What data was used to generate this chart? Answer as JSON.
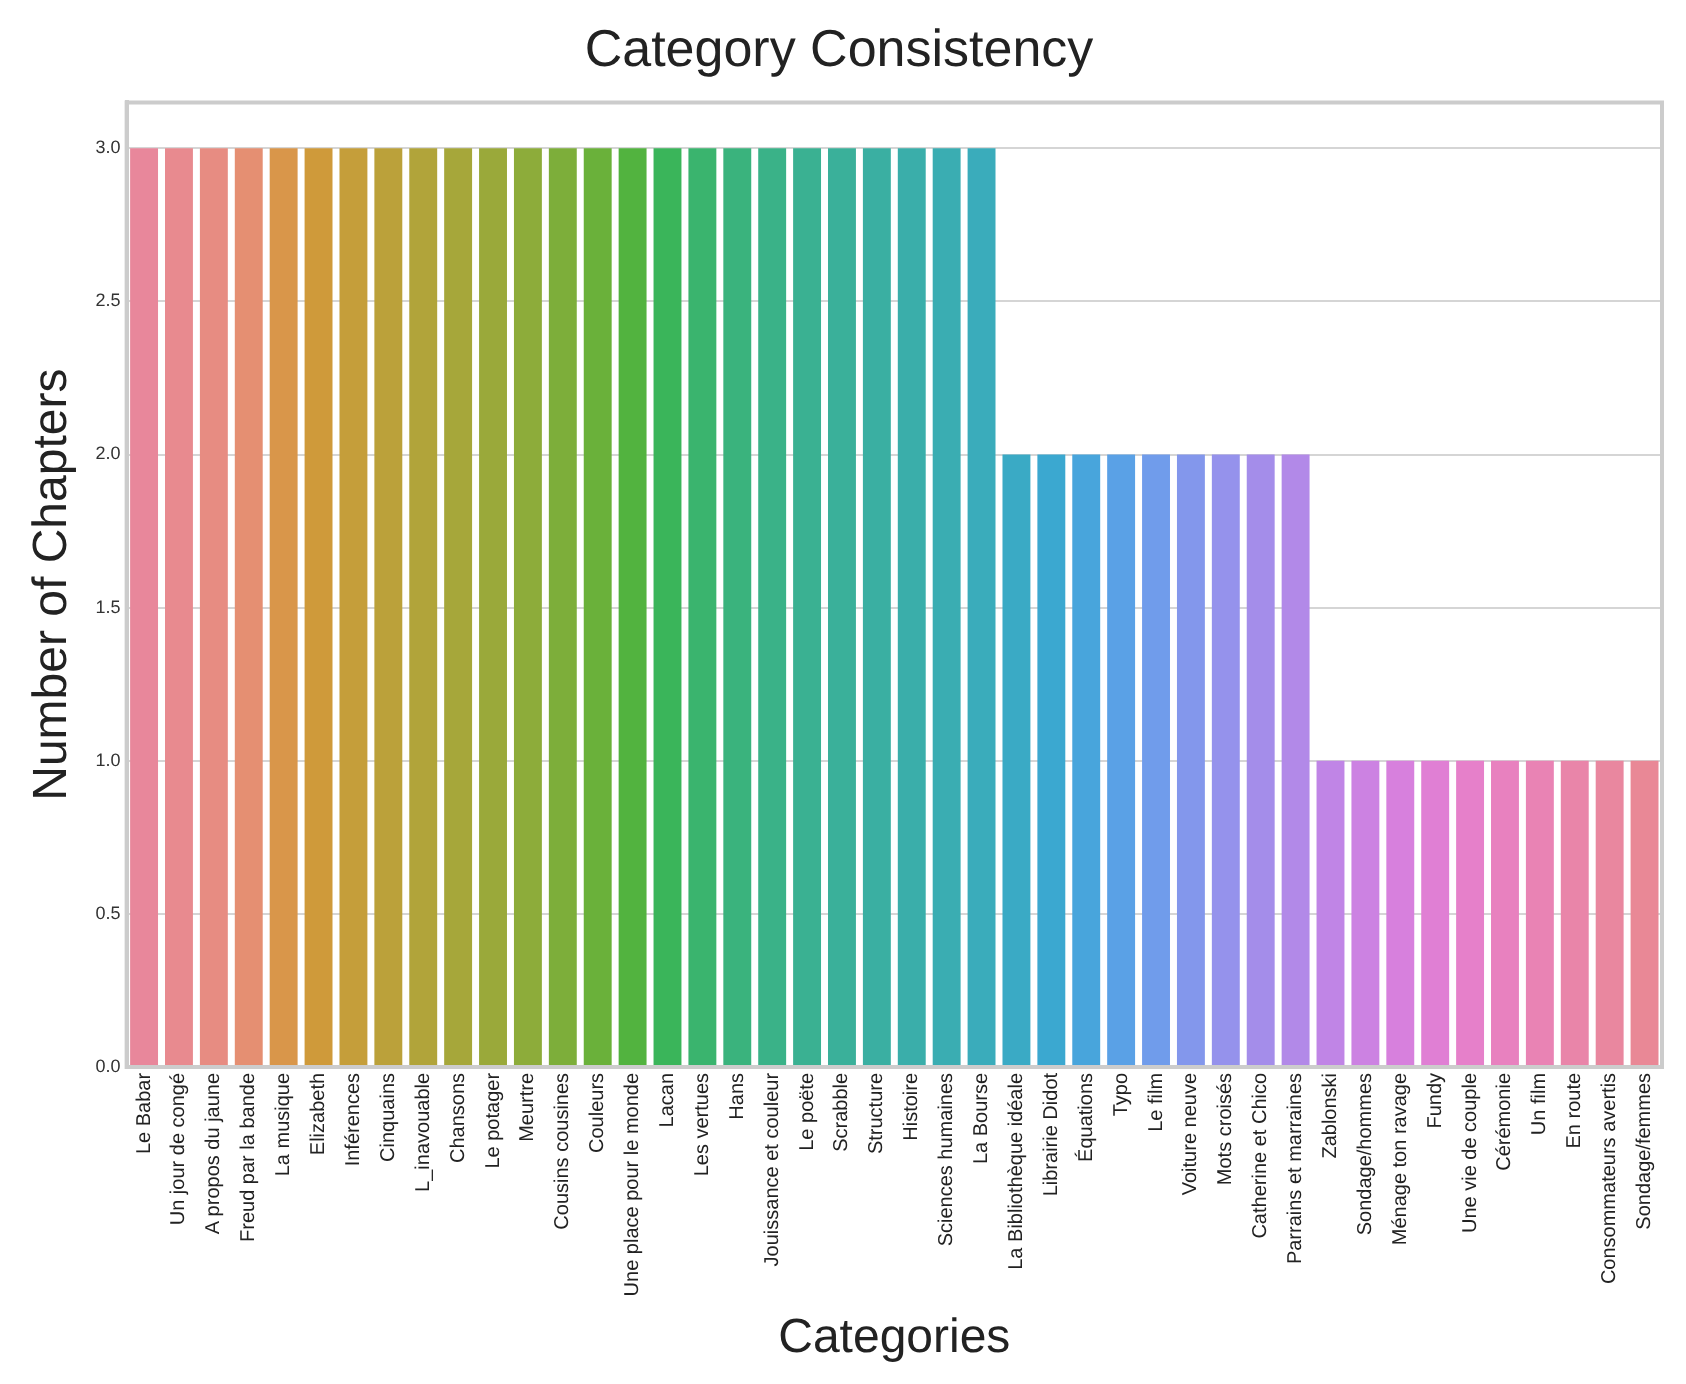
{
  "chart_data": {
    "type": "bar",
    "title": "Category Consistency",
    "xlabel": "Categories",
    "ylabel": "Number of Chapters",
    "categories": [
      "Le Babar",
      "Un jour de congé",
      "A propos du jaune",
      "Freud par la bande",
      "La musique",
      "Elizabeth",
      "Inférences",
      "Cinquains",
      "L_inavouable",
      "Chansons",
      "Le potager",
      "Meurtre",
      "Cousins cousines",
      "Couleurs",
      "Une place pour le monde",
      "Lacan",
      "Les vertues",
      "Hans",
      "Jouissance et couleur",
      "Le poëte",
      "Scrabble",
      "Structure",
      "Histoire",
      "Sciences humaines",
      "La Bourse",
      "La Bibliothèque idéale",
      "Librairie Didot",
      "Équations",
      "Typo",
      "Le film",
      "Voiture neuve",
      "Mots croisés",
      "Catherine et Chico",
      "Parrains et marraines",
      "Zablonski",
      "Sondage/hommes",
      "Ménage ton ravage",
      "Fundy",
      "Une vie de couple",
      "Cérémonie",
      "Un film",
      "En route",
      "Consommateurs avertis",
      "Sondage/femmes"
    ],
    "values": [
      3,
      3,
      3,
      3,
      3,
      3,
      3,
      3,
      3,
      3,
      3,
      3,
      3,
      3,
      3,
      3,
      3,
      3,
      3,
      3,
      3,
      3,
      3,
      3,
      3,
      2,
      2,
      2,
      2,
      2,
      2,
      2,
      2,
      2,
      1,
      1,
      1,
      1,
      1,
      1,
      1,
      1,
      1,
      1
    ],
    "colors": [
      "#e8879b",
      "#e88a8f",
      "#e78c82",
      "#e58f72",
      "#d9964a",
      "#cf9a3a",
      "#c59e3a",
      "#bba13a",
      "#b1a43a",
      "#a6a73a",
      "#9aa93a",
      "#8dac3a",
      "#7dae3a",
      "#6ab13a",
      "#52b33f",
      "#3ab55a",
      "#3ab46e",
      "#3ab37d",
      "#3ab288",
      "#3ab192",
      "#3ab09a",
      "#3aafa2",
      "#3aaeaa",
      "#3aadb2",
      "#3aacbb",
      "#3aaac5",
      "#3ba8d0",
      "#48a5dc",
      "#5aa1e6",
      "#709ceb",
      "#8397ec",
      "#9592ec",
      "#a48dea",
      "#b289e8",
      "#c085e6",
      "#cc82e2",
      "#d780dd",
      "#e07fd4",
      "#e680ca",
      "#e881bf",
      "#e983b4",
      "#e985a9",
      "#e9879f",
      "#e98896"
    ],
    "ylim": [
      0,
      3.15
    ],
    "yticks": [
      {
        "value": 0,
        "label": "0.0"
      },
      {
        "value": 0.5,
        "label": "0.5"
      },
      {
        "value": 1,
        "label": "1.0"
      },
      {
        "value": 1.5,
        "label": "1.5"
      },
      {
        "value": 2,
        "label": "2.0"
      },
      {
        "value": 2.5,
        "label": "2.5"
      },
      {
        "value": 3,
        "label": "3.0"
      }
    ],
    "grid": "y",
    "legend": false
  }
}
